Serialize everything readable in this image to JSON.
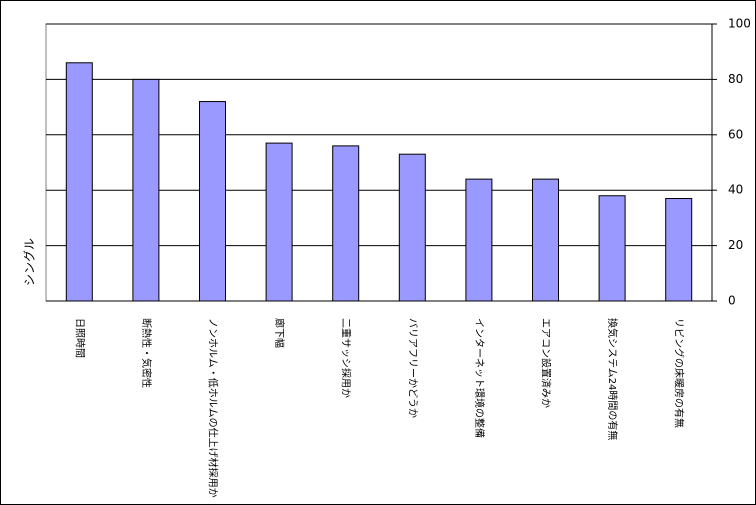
{
  "chart_data": {
    "type": "bar",
    "y_label": "シングル",
    "categories": [
      "日照時間",
      "断熱性・気密性",
      "ノンホルム・低ホルムの仕上げ材採用か",
      "廊下幅",
      "二重サッシ採用か",
      "バリアフリーかどうか",
      "インターネット環境の整備",
      "エアコン設置済みか",
      "換気システム24時間の有無",
      "リビングの床暖房の有無"
    ],
    "values": [
      86,
      80,
      72,
      57,
      56,
      53,
      44,
      44,
      38,
      37
    ],
    "color": "#9999ff",
    "ylim": [
      0,
      100
    ],
    "yticks": [
      0,
      20,
      40,
      60,
      80,
      100
    ],
    "grid": true
  }
}
